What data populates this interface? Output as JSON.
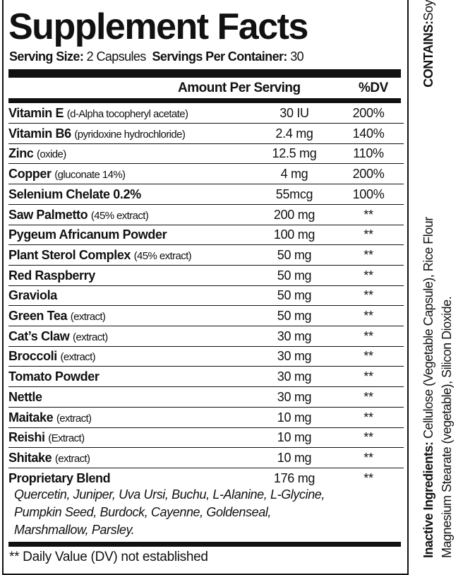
{
  "title": "Supplement Facts",
  "serving": {
    "size_label": "Serving Size:",
    "size_value": "2 Capsules",
    "per_container_label": "Servings Per Container:",
    "per_container_value": "30"
  },
  "columns": {
    "amount": "Amount Per Serving",
    "dv": "%DV"
  },
  "rows": [
    {
      "name": "Vitamin E",
      "detail": "(d-Alpha tocopheryl acetate)",
      "amount": "30 IU",
      "dv": "200%"
    },
    {
      "name": "Vitamin B6",
      "detail": "(pyridoxine hydrochloride)",
      "amount": "2.4 mg",
      "dv": "140%"
    },
    {
      "name": "Zinc",
      "detail": "(oxide)",
      "amount": "12.5 mg",
      "dv": "110%"
    },
    {
      "name": "Copper",
      "detail": "(gluconate 14%)",
      "amount": "4 mg",
      "dv": "200%"
    },
    {
      "name": "Selenium Chelate 0.2%",
      "detail": "",
      "amount": "55mcg",
      "dv": "100%"
    },
    {
      "name": "Saw Palmetto",
      "detail": "(45% extract)",
      "amount": "200 mg",
      "dv": "**"
    },
    {
      "name": "Pygeum Africanum Powder",
      "detail": "",
      "amount": "100 mg",
      "dv": "**"
    },
    {
      "name": "Plant Sterol Complex",
      "detail": "(45% extract)",
      "amount": "50 mg",
      "dv": "**"
    },
    {
      "name": "Red Raspberry",
      "detail": "",
      "amount": "50 mg",
      "dv": "**"
    },
    {
      "name": "Graviola",
      "detail": "",
      "amount": "50 mg",
      "dv": "**"
    },
    {
      "name": "Green Tea",
      "detail": "(extract)",
      "amount": "50 mg",
      "dv": "**"
    },
    {
      "name": "Cat’s Claw",
      "detail": "(extract)",
      "amount": "30 mg",
      "dv": "**"
    },
    {
      "name": "Broccoli",
      "detail": "(extract)",
      "amount": "30 mg",
      "dv": "**"
    },
    {
      "name": "Tomato Powder",
      "detail": "",
      "amount": "30 mg",
      "dv": "**"
    },
    {
      "name": "Nettle",
      "detail": "",
      "amount": "30 mg",
      "dv": "**"
    },
    {
      "name": "Maitake",
      "detail": "(extract)",
      "amount": "10 mg",
      "dv": "**"
    },
    {
      "name": "Reishi",
      "detail": "(Extract)",
      "amount": "10 mg",
      "dv": "**"
    },
    {
      "name": "Shitake",
      "detail": "(extract)",
      "amount": "10 mg",
      "dv": "**"
    },
    {
      "name": "Proprietary Blend",
      "detail": "",
      "amount": "176 mg",
      "dv": "**"
    }
  ],
  "blend_lines": [
    "Quercetin, Juniper, Uva Ursi, Buchu, L-Alanine, L-Glycine,",
    "Pumpkin Seed, Burdock, Cayenne, Goldenseal,",
    "Marshmallow, Parsley."
  ],
  "footnote": "** Daily Value (DV) not established",
  "side": {
    "inactive_label": "Inactive Ingredients:",
    "inactive_line1": "Cellulose (Vegetable Capsule), Rice Flour",
    "inactive_line2": "Magnesium Stearate (vegetable), Silicon Dioxide.",
    "contains_label": "CONTAINS:",
    "contains_value": "Soy"
  }
}
